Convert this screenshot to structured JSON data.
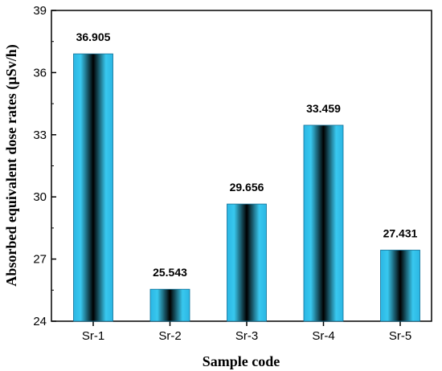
{
  "chart_data": {
    "type": "bar",
    "title": "",
    "xlabel": "Sample code",
    "ylabel": "Absorbed equivalent dose rates (µSv/h)",
    "categories": [
      "Sr-1",
      "Sr-2",
      "Sr-3",
      "Sr-4",
      "Sr-5"
    ],
    "values": [
      36.905,
      25.543,
      29.656,
      33.459,
      27.431
    ],
    "data_labels": [
      "36.905",
      "25.543",
      "29.656",
      "33.459",
      "27.431"
    ],
    "ylim": [
      24,
      39
    ],
    "yticks": [
      24,
      27,
      30,
      33,
      36,
      39
    ],
    "ytick_labels": [
      "24",
      "27",
      "30",
      "33",
      "36",
      "39"
    ],
    "grid": false,
    "legend": "none",
    "bar_color_edge": "#1a9fd0",
    "bar_color_center": "#000000"
  }
}
